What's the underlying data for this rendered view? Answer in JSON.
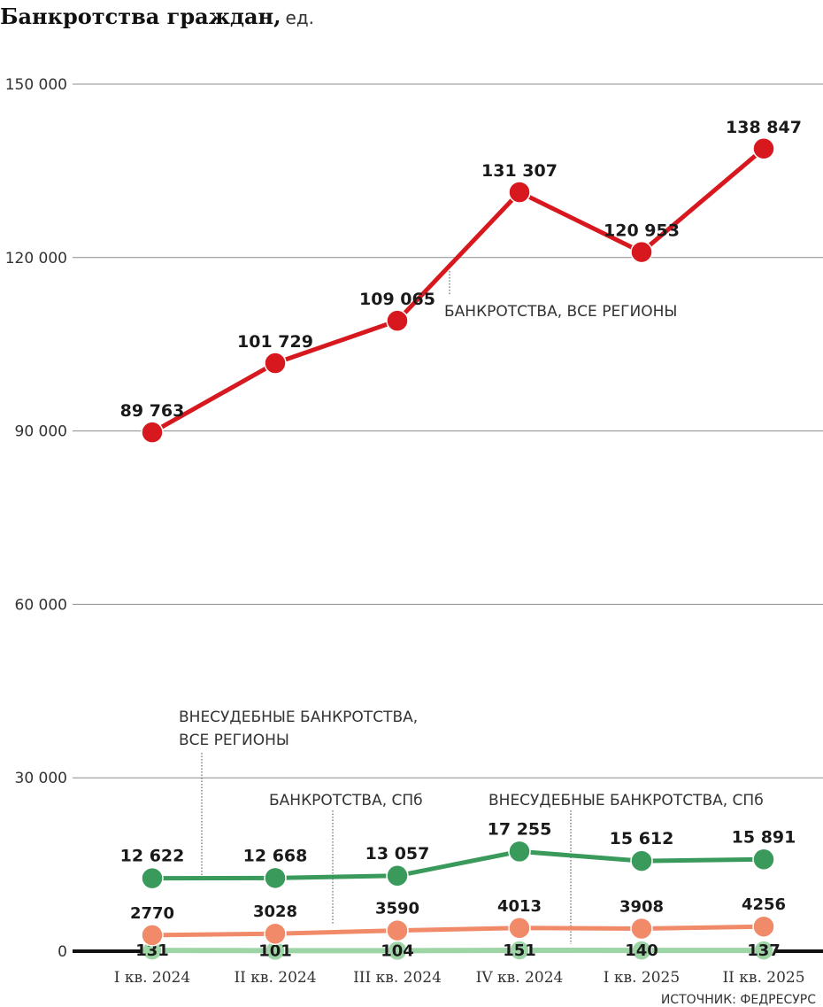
{
  "title": "Банкротства граждан,",
  "unit": "ед.",
  "source": "ИСТОЧНИК: ФЕДРЕСУРС",
  "chart_data": {
    "type": "line",
    "categories": [
      "I кв. 2024",
      "II кв. 2024",
      "III кв. 2024",
      "IV кв. 2024",
      "I кв. 2025",
      "II кв. 2025"
    ],
    "yticks": [
      "0",
      "30 000",
      "60 000",
      "90 000",
      "120 000",
      "150 000"
    ],
    "ylim": [
      0,
      150000
    ],
    "grid": true,
    "series": [
      {
        "name": "БАНКРОТСТВА, ВСЕ РЕГИОНЫ",
        "color": "#d7191f",
        "values": [
          89763,
          101729,
          109065,
          131307,
          120953,
          138847
        ],
        "labels": [
          "89 763",
          "101 729",
          "109 065",
          "131 307",
          "120 953",
          "138 847"
        ]
      },
      {
        "name": "ВНЕСУДЕБНЫЕ БАНКРОТСТВА, ВСЕ РЕГИОНЫ",
        "color": "#3a9a5b",
        "values": [
          12622,
          12668,
          13057,
          17255,
          15612,
          15891
        ],
        "labels": [
          "12 622",
          "12 668",
          "13 057",
          "17 255",
          "15 612",
          "15 891"
        ]
      },
      {
        "name": "БАНКРОТСТВА, СПб",
        "color": "#f08a69",
        "values": [
          2770,
          3028,
          3590,
          4013,
          3908,
          4256
        ],
        "labels": [
          "2770",
          "3028",
          "3590",
          "4013",
          "3908",
          "4256"
        ]
      },
      {
        "name": "ВНЕСУДЕБНЫЕ БАНКРОТСТВА, СПб",
        "color": "#9ed5a6",
        "values": [
          131,
          101,
          104,
          151,
          140,
          137
        ],
        "labels": [
          "131",
          "101",
          "104",
          "151",
          "140",
          "137"
        ]
      }
    ],
    "annotations": {
      "all_regions": "БАНКРОТСТВА, ВСЕ РЕГИОНЫ",
      "out_of_court_all": [
        "ВНЕСУДЕБНЫЕ БАНКРОТСТВА,",
        "ВСЕ РЕГИОНЫ"
      ],
      "spb": "БАНКРОТСТВА, СПб",
      "out_of_court_spb": "ВНЕСУДЕБНЫЕ БАНКРОТСТВА, СПб"
    }
  }
}
